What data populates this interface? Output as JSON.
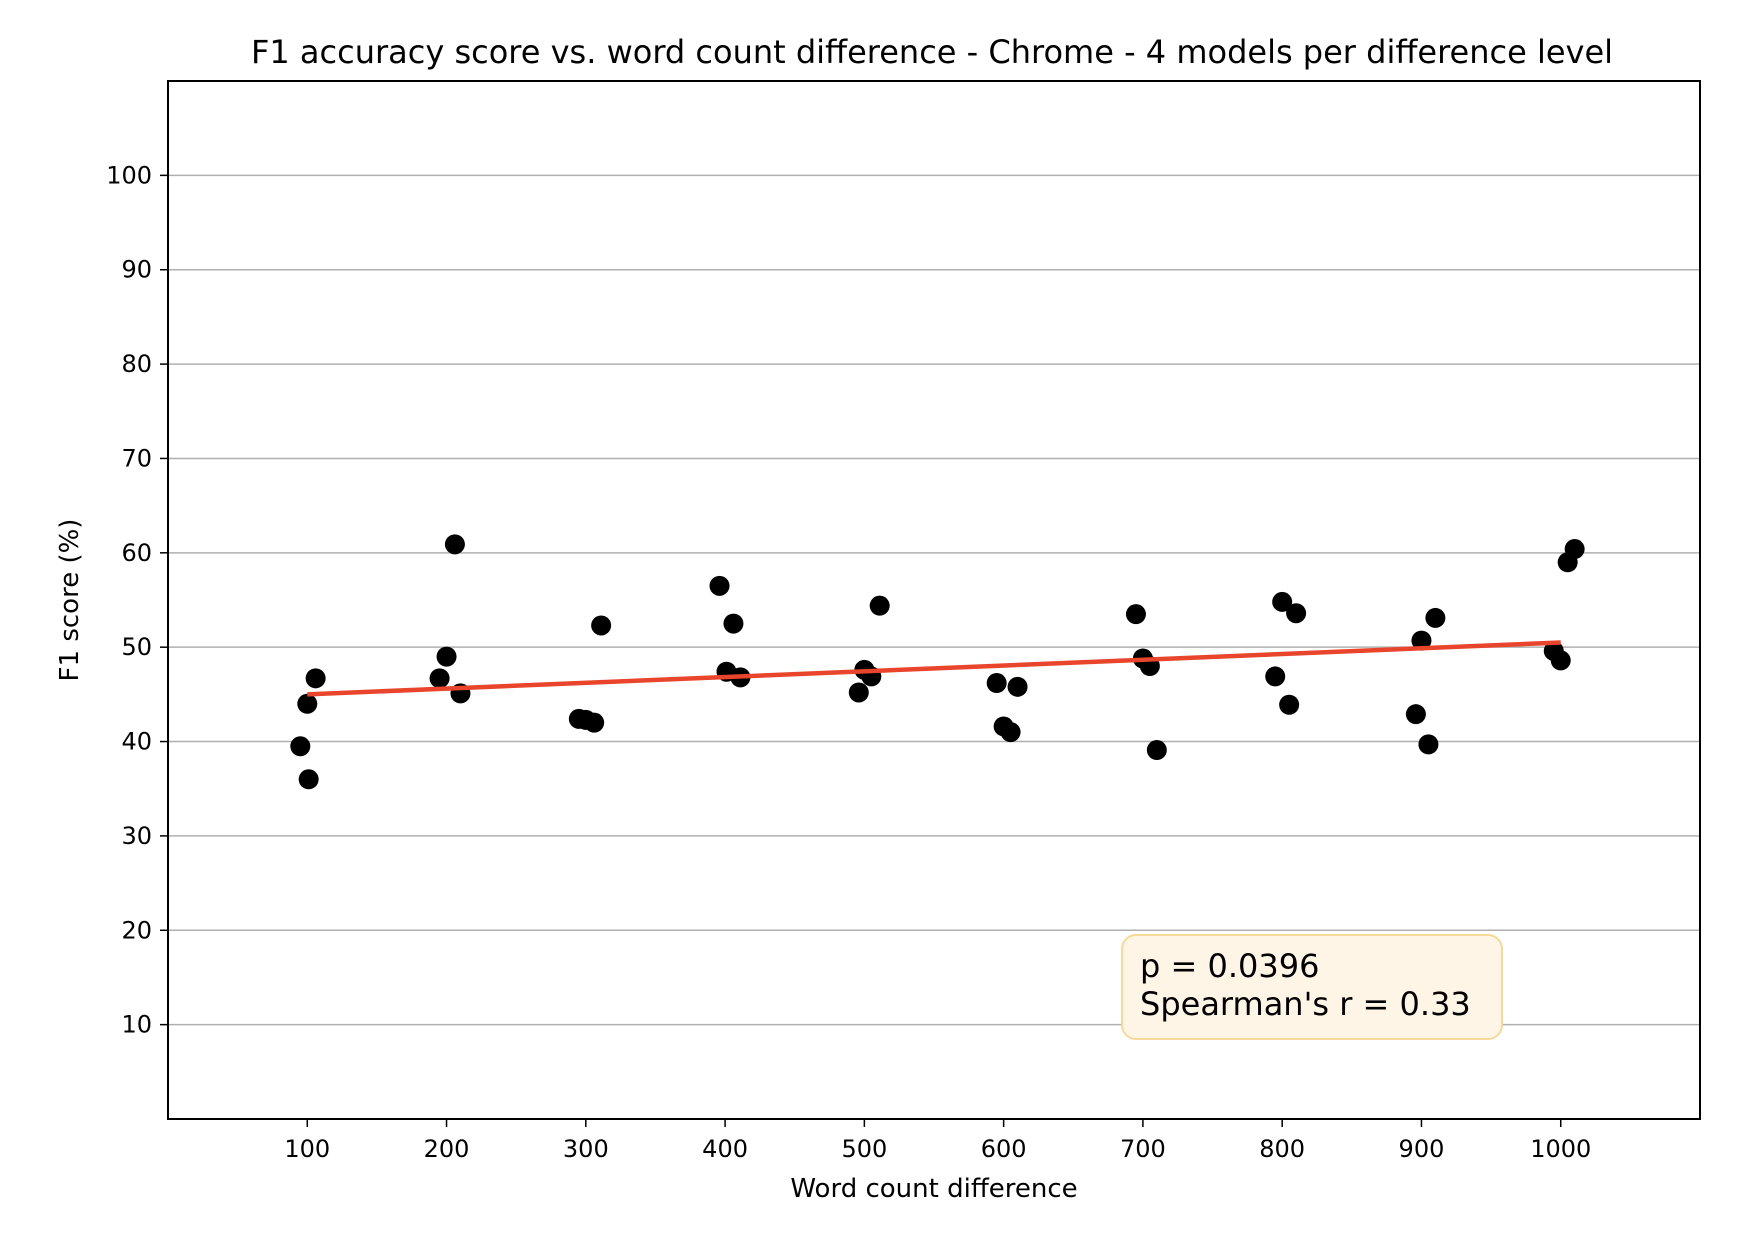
{
  "chart_data": {
    "type": "scatter",
    "title": "F1 accuracy score vs. word count difference - Chrome - 4 models per difference level",
    "xlabel": "Word count difference",
    "ylabel": "F1 score (%)",
    "xlim": [
      0,
      1100
    ],
    "ylim": [
      0,
      110
    ],
    "xticks": [
      100,
      200,
      300,
      400,
      500,
      600,
      700,
      800,
      900,
      1000
    ],
    "yticks": [
      10,
      20,
      30,
      40,
      50,
      60,
      70,
      80,
      90,
      100
    ],
    "grid": "horizontal",
    "point_color": "#000000",
    "trend_color": "#e8452c",
    "points": [
      {
        "x": 95,
        "y": 39.5
      },
      {
        "x": 100,
        "y": 44.0
      },
      {
        "x": 101,
        "y": 36.0
      },
      {
        "x": 106,
        "y": 46.7
      },
      {
        "x": 195,
        "y": 46.7
      },
      {
        "x": 200,
        "y": 49.0
      },
      {
        "x": 206,
        "y": 60.9
      },
      {
        "x": 210,
        "y": 45.1
      },
      {
        "x": 295,
        "y": 42.4
      },
      {
        "x": 300,
        "y": 42.3
      },
      {
        "x": 306,
        "y": 42.0
      },
      {
        "x": 311,
        "y": 52.3
      },
      {
        "x": 396,
        "y": 56.5
      },
      {
        "x": 401,
        "y": 47.4
      },
      {
        "x": 406,
        "y": 52.5
      },
      {
        "x": 411,
        "y": 46.8
      },
      {
        "x": 496,
        "y": 45.2
      },
      {
        "x": 500,
        "y": 47.6
      },
      {
        "x": 505,
        "y": 46.9
      },
      {
        "x": 511,
        "y": 54.4
      },
      {
        "x": 595,
        "y": 46.2
      },
      {
        "x": 600,
        "y": 41.6
      },
      {
        "x": 605,
        "y": 41.0
      },
      {
        "x": 610,
        "y": 45.8
      },
      {
        "x": 695,
        "y": 53.5
      },
      {
        "x": 700,
        "y": 48.8
      },
      {
        "x": 705,
        "y": 48.0
      },
      {
        "x": 710,
        "y": 39.1
      },
      {
        "x": 795,
        "y": 46.9
      },
      {
        "x": 800,
        "y": 54.8
      },
      {
        "x": 805,
        "y": 43.9
      },
      {
        "x": 810,
        "y": 53.6
      },
      {
        "x": 896,
        "y": 42.9
      },
      {
        "x": 900,
        "y": 50.7
      },
      {
        "x": 905,
        "y": 39.7
      },
      {
        "x": 910,
        "y": 53.1
      },
      {
        "x": 995,
        "y": 49.6
      },
      {
        "x": 1000,
        "y": 48.6
      },
      {
        "x": 1005,
        "y": 59.0
      },
      {
        "x": 1010,
        "y": 60.4
      }
    ],
    "trend_line": {
      "x": [
        100,
        1000
      ],
      "y": [
        45.0,
        50.5
      ]
    },
    "annotation": {
      "lines": [
        "p = 0.0396",
        "Spearman's r = 0.33"
      ],
      "fill": "#fef5e7",
      "border": "#f5d99a"
    }
  }
}
